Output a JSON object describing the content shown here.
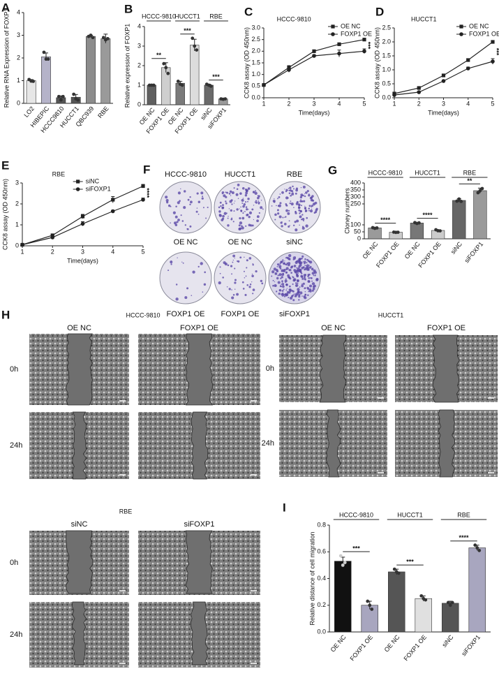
{
  "chart_data": [
    {
      "panel": "A",
      "type": "bar",
      "ylabel": "Relative RNA Expression of FOXP1",
      "categories": [
        "LO2",
        "HIBEPIC",
        "HCCC9810",
        "HUCCT1",
        "QBC939",
        "RBE"
      ],
      "values": [
        1.0,
        2.05,
        0.25,
        0.27,
        2.95,
        2.85
      ],
      "errors": [
        0.05,
        0.17,
        0.08,
        0.12,
        0.05,
        0.2
      ],
      "points": [
        [
          1.05,
          0.98,
          0.97
        ],
        [
          2.25,
          1.95,
          1.95
        ],
        [
          0.3,
          0.15,
          0.3
        ],
        [
          0.4,
          0.2,
          0.15
        ],
        [
          2.95,
          3.0,
          2.9
        ],
        [
          2.9,
          2.8,
          2.85
        ]
      ],
      "colors": [
        "#e6e6e6",
        "#b5b3c9",
        "#555555",
        "#555555",
        "#8c8c8c",
        "#9a9a9a"
      ],
      "ylim": [
        0,
        4
      ],
      "yticks": [
        0,
        1,
        2,
        3,
        4
      ]
    },
    {
      "panel": "B",
      "type": "bar",
      "ylabel": "Relative expression of FOXP1",
      "categories": [
        "OE NC",
        "FOXP1 OE",
        "OE NC",
        "FOXP1 OE",
        "siNC",
        "siFOXP1"
      ],
      "values": [
        1.0,
        1.9,
        1.1,
        3.05,
        1.0,
        0.3
      ],
      "errors": [
        0.02,
        0.25,
        0.1,
        0.3,
        0.05,
        0.03
      ],
      "points": [
        [
          1.0,
          1.0,
          1.0
        ],
        [
          2.1,
          1.9,
          1.6
        ],
        [
          1.2,
          1.05,
          1.0
        ],
        [
          3.4,
          3.0,
          2.8
        ],
        [
          1.05,
          1.0,
          0.95
        ],
        [
          0.3,
          0.28,
          0.3
        ]
      ],
      "colors": [
        "#5f5f5f",
        "#cfcfcf",
        "#7a7a7a",
        "#dcdcdc",
        "#6a6a6a",
        "#9a9a9a"
      ],
      "groups": [
        {
          "label": "HCCC-9810",
          "from": 0,
          "to": 1
        },
        {
          "label": "HUCCT1",
          "from": 2,
          "to": 3
        },
        {
          "label": "RBE",
          "from": 4,
          "to": 5
        }
      ],
      "annotations": [
        {
          "text": "**",
          "from": 0,
          "to": 1
        },
        {
          "text": "***",
          "from": 2,
          "to": 3
        },
        {
          "text": "***",
          "from": 4,
          "to": 5
        }
      ],
      "ylim": [
        0,
        4
      ],
      "yticks": [
        0,
        1,
        2,
        3,
        4
      ]
    },
    {
      "panel": "C",
      "type": "line",
      "title": "HCCC-9810",
      "xlabel": "Time(days)",
      "ylabel": "CCK8 assay (OD 450nm)",
      "x": [
        1,
        2,
        3,
        4,
        5
      ],
      "series": [
        {
          "name": "OE NC",
          "color": "#222222",
          "marker": "square",
          "values": [
            0.55,
            1.3,
            2.0,
            2.3,
            2.5
          ],
          "errors": [
            0.02,
            0.08,
            0.05,
            0.05,
            0.05
          ]
        },
        {
          "name": "FOXP1 OE",
          "color": "#222222",
          "marker": "circle",
          "values": [
            0.55,
            1.2,
            1.8,
            1.9,
            2.0
          ],
          "errors": [
            0.02,
            0.1,
            0.05,
            0.15,
            0.1
          ]
        }
      ],
      "annotation": "***",
      "legend": "upper right",
      "xlim": [
        1,
        5
      ],
      "xticks": [
        1,
        2,
        3,
        4,
        5
      ],
      "ylim": [
        0,
        3
      ],
      "yticks": [
        {
          "value": 0,
          "label": "0.0"
        },
        0.5,
        {
          "value": 1,
          "label": "1.0"
        },
        1.5,
        {
          "value": 2,
          "label": "2.0"
        },
        2.5,
        {
          "value": 3,
          "label": "3.0"
        }
      ]
    },
    {
      "panel": "D",
      "type": "line",
      "title": "HUCCT1",
      "xlabel": "Time(days)",
      "ylabel": "CCK8 assay (OD 450nm)",
      "x": [
        1,
        2,
        3,
        4,
        5
      ],
      "series": [
        {
          "name": "OE NC",
          "color": "#222222",
          "marker": "square",
          "values": [
            0.15,
            0.35,
            0.8,
            1.35,
            2.0
          ],
          "errors": [
            0.01,
            0.03,
            0.03,
            0.04,
            0.05
          ]
        },
        {
          "name": "FOXP1 OE",
          "color": "#222222",
          "marker": "circle",
          "values": [
            0.1,
            0.2,
            0.6,
            1.05,
            1.3
          ],
          "errors": [
            0.01,
            0.03,
            0.03,
            0.05,
            0.1
          ]
        }
      ],
      "annotation": "***",
      "legend": "upper right",
      "xlim": [
        1,
        5
      ],
      "xticks": [
        1,
        2,
        3,
        4,
        5
      ],
      "ylim": [
        0,
        2.5
      ],
      "yticks": [
        {
          "value": 0,
          "label": "0.0"
        },
        0.5,
        {
          "value": 1,
          "label": "1.0"
        },
        1.5,
        {
          "value": 2,
          "label": "2.0"
        },
        2.5
      ]
    },
    {
      "panel": "E",
      "type": "line",
      "title": "RBE",
      "xlabel": "Time(days)",
      "ylabel": "CCK8 assay (OD 450nm)",
      "x": [
        1,
        2,
        3,
        4,
        5
      ],
      "series": [
        {
          "name": "siNC",
          "color": "#222222",
          "marker": "square",
          "values": [
            0.05,
            0.5,
            1.4,
            2.2,
            2.85
          ],
          "errors": [
            0.02,
            0.05,
            0.1,
            0.15,
            0.08
          ]
        },
        {
          "name": "siFOXP1",
          "color": "#222222",
          "marker": "circle",
          "values": [
            0.05,
            0.4,
            1.05,
            1.65,
            2.2
          ],
          "errors": [
            0.02,
            0.05,
            0.1,
            0.05,
            0.08
          ]
        }
      ],
      "annotation": "****",
      "legend": "upper center",
      "xlim": [
        1,
        5
      ],
      "xticks": [
        1,
        2,
        3,
        4,
        5
      ],
      "ylim": [
        0,
        3
      ],
      "yticks": [
        0,
        1,
        2,
        3
      ]
    },
    {
      "panel": "G",
      "type": "bar",
      "ylabel": "Cloney numbers",
      "categories": [
        "OE NC",
        "FOXP1 OE",
        "OE NC",
        "FOXP1 OE",
        "siNC",
        "siFOXP1"
      ],
      "values": [
        78,
        47,
        113,
        60,
        275,
        345
      ],
      "errors": [
        4,
        2,
        4,
        5,
        12,
        18
      ],
      "points": [
        [
          80,
          75,
          78
        ],
        [
          48,
          46,
          47
        ],
        [
          116,
          110,
          114
        ],
        [
          65,
          58,
          57
        ],
        [
          270,
          285,
          268
        ],
        [
          330,
          345,
          360
        ]
      ],
      "colors": [
        "#9a9a9a",
        "#cccccc",
        "#777777",
        "#cccccc",
        "#666666",
        "#9a9a9a"
      ],
      "groups": [
        {
          "label": "HCCC-9810",
          "from": 0,
          "to": 1
        },
        {
          "label": "HUCCT1",
          "from": 2,
          "to": 3
        },
        {
          "label": "RBE",
          "from": 4,
          "to": 5
        }
      ],
      "annotations": [
        {
          "text": "****",
          "from": 0,
          "to": 1
        },
        {
          "text": "****",
          "from": 2,
          "to": 3
        },
        {
          "text": "**",
          "from": 4,
          "to": 5
        }
      ],
      "ylim": [
        0,
        400
      ],
      "yticks": [
        0,
        50,
        100,
        250,
        300,
        350,
        400
      ]
    },
    {
      "panel": "I",
      "type": "bar",
      "ylabel": "Relative distance of cell migration",
      "categories": [
        "OE NC",
        "FOXP1 OE",
        "OE NC",
        "FOXP1 OE",
        "siNC",
        "siFOXP1"
      ],
      "values": [
        0.53,
        0.2,
        0.45,
        0.25,
        0.215,
        0.63
      ],
      "errors": [
        0.03,
        0.03,
        0.02,
        0.02,
        0.015,
        0.02
      ],
      "points": [
        [
          0.57,
          0.5,
          0.52
        ],
        [
          0.23,
          0.2,
          0.17
        ],
        [
          0.47,
          0.45,
          0.44
        ],
        [
          0.27,
          0.25,
          0.24
        ],
        [
          0.22,
          0.2,
          0.22
        ],
        [
          0.65,
          0.63,
          0.61
        ]
      ],
      "colors": [
        "#111111",
        "#a8a6bf",
        "#555555",
        "#e0e0e0",
        "#555555",
        "#a8a6bf"
      ],
      "groups": [
        {
          "label": "HCCC-9810",
          "from": 0,
          "to": 1
        },
        {
          "label": "HUCCT1",
          "from": 2,
          "to": 3
        },
        {
          "label": "RBE",
          "from": 4,
          "to": 5
        }
      ],
      "annotations": [
        {
          "text": "***",
          "from": 0,
          "to": 1
        },
        {
          "text": "***",
          "from": 2,
          "to": 3
        },
        {
          "text": "****",
          "from": 4,
          "to": 5
        }
      ],
      "ylim": [
        0,
        0.8
      ],
      "yticks": [
        {
          "value": 0,
          "label": "0.0"
        },
        0.2,
        0.4,
        0.6,
        0.8
      ]
    }
  ],
  "colony_images": {
    "panel": "F",
    "columns": [
      "HCCC-9810",
      "HUCCT1",
      "RBE"
    ],
    "top": [
      "OE NC",
      "OE NC",
      "siNC"
    ],
    "bottom": [
      "FOXP1 OE",
      "FOXP1 OE",
      "siFOXP1"
    ]
  },
  "wound_images": {
    "panel": "H",
    "rows": [
      "0h",
      "24h"
    ],
    "groups": [
      {
        "name": "HCCC-9810",
        "conditions": [
          "OE NC",
          "FOXP1 OE"
        ]
      },
      {
        "name": "HUCCT1",
        "conditions": [
          "OE NC",
          "FOXP1 OE"
        ]
      },
      {
        "name": "RBE",
        "conditions": [
          "siNC",
          "siFOXP1"
        ]
      }
    ]
  }
}
